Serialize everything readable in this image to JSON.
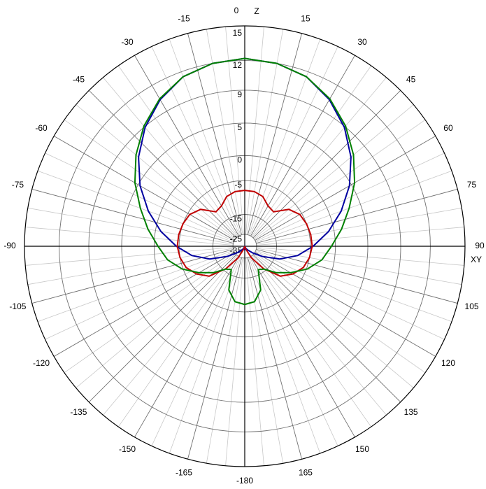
{
  "chart_data": {
    "type": "polar",
    "axis_labels": {
      "z": "Z",
      "xy": "XY"
    },
    "rlim": [
      -35,
      15
    ],
    "rticks": [
      15,
      12,
      9,
      5,
      0,
      -5,
      -15,
      -25,
      -35
    ],
    "angle_ticks": [
      0,
      15,
      30,
      45,
      60,
      75,
      90,
      105,
      120,
      135,
      150,
      165,
      -180,
      -165,
      -150,
      -135,
      -120,
      -105,
      -90,
      -75,
      -60,
      -45,
      -30,
      -15
    ],
    "angles": [
      -180,
      -170,
      -160,
      -150,
      -140,
      -130,
      -120,
      -110,
      -100,
      -90,
      -80,
      -70,
      -60,
      -50,
      -40,
      -30,
      -20,
      -10,
      0,
      10,
      20,
      30,
      40,
      50,
      60,
      70,
      80,
      90,
      100,
      110,
      120,
      130,
      140,
      150,
      160,
      170,
      180
    ],
    "series": [
      {
        "color": "#0000a0",
        "values": [
          -31,
          -35,
          -34,
          -32,
          -30,
          -26,
          -20,
          -13,
          -8,
          -4.4,
          -1,
          2,
          4.7,
          7,
          8.9,
          10.4,
          11.5,
          12,
          12.2,
          12,
          11.5,
          10.4,
          8.9,
          7,
          4.7,
          2,
          -1,
          -4.4,
          -8,
          -13,
          -20,
          -26,
          -30,
          -32,
          -34,
          -35,
          -31
        ]
      },
      {
        "color": "#c00000",
        "values": [
          -35,
          -35,
          -32,
          -24,
          -16,
          -10,
          -7.5,
          -5.8,
          -5,
          -4.6,
          -4.7,
          -5,
          -5.5,
          -7,
          -10.5,
          -10,
          -8.2,
          -7.5,
          -7.4,
          -7.5,
          -8.2,
          -10,
          -10.5,
          -7,
          -5.5,
          -5,
          -4.7,
          -4.6,
          -5,
          -5.8,
          -7.5,
          -10,
          -16,
          -24,
          -32,
          -35,
          -35
        ]
      },
      {
        "color": "#008000",
        "values": [
          -6.8,
          -7.3,
          -10,
          -17,
          -15.8,
          -11.7,
          -8.2,
          -4.8,
          -2.3,
          -0.7,
          1.3,
          3.3,
          5.5,
          7.4,
          9.1,
          10.5,
          11.5,
          12,
          12.2,
          12,
          11.5,
          10.5,
          9.1,
          7.4,
          5.5,
          3.3,
          1.3,
          -0.7,
          -2.3,
          -4.8,
          -8.2,
          -11.7,
          -15.8,
          -17,
          -10,
          -7.3,
          -6.8
        ]
      }
    ]
  }
}
